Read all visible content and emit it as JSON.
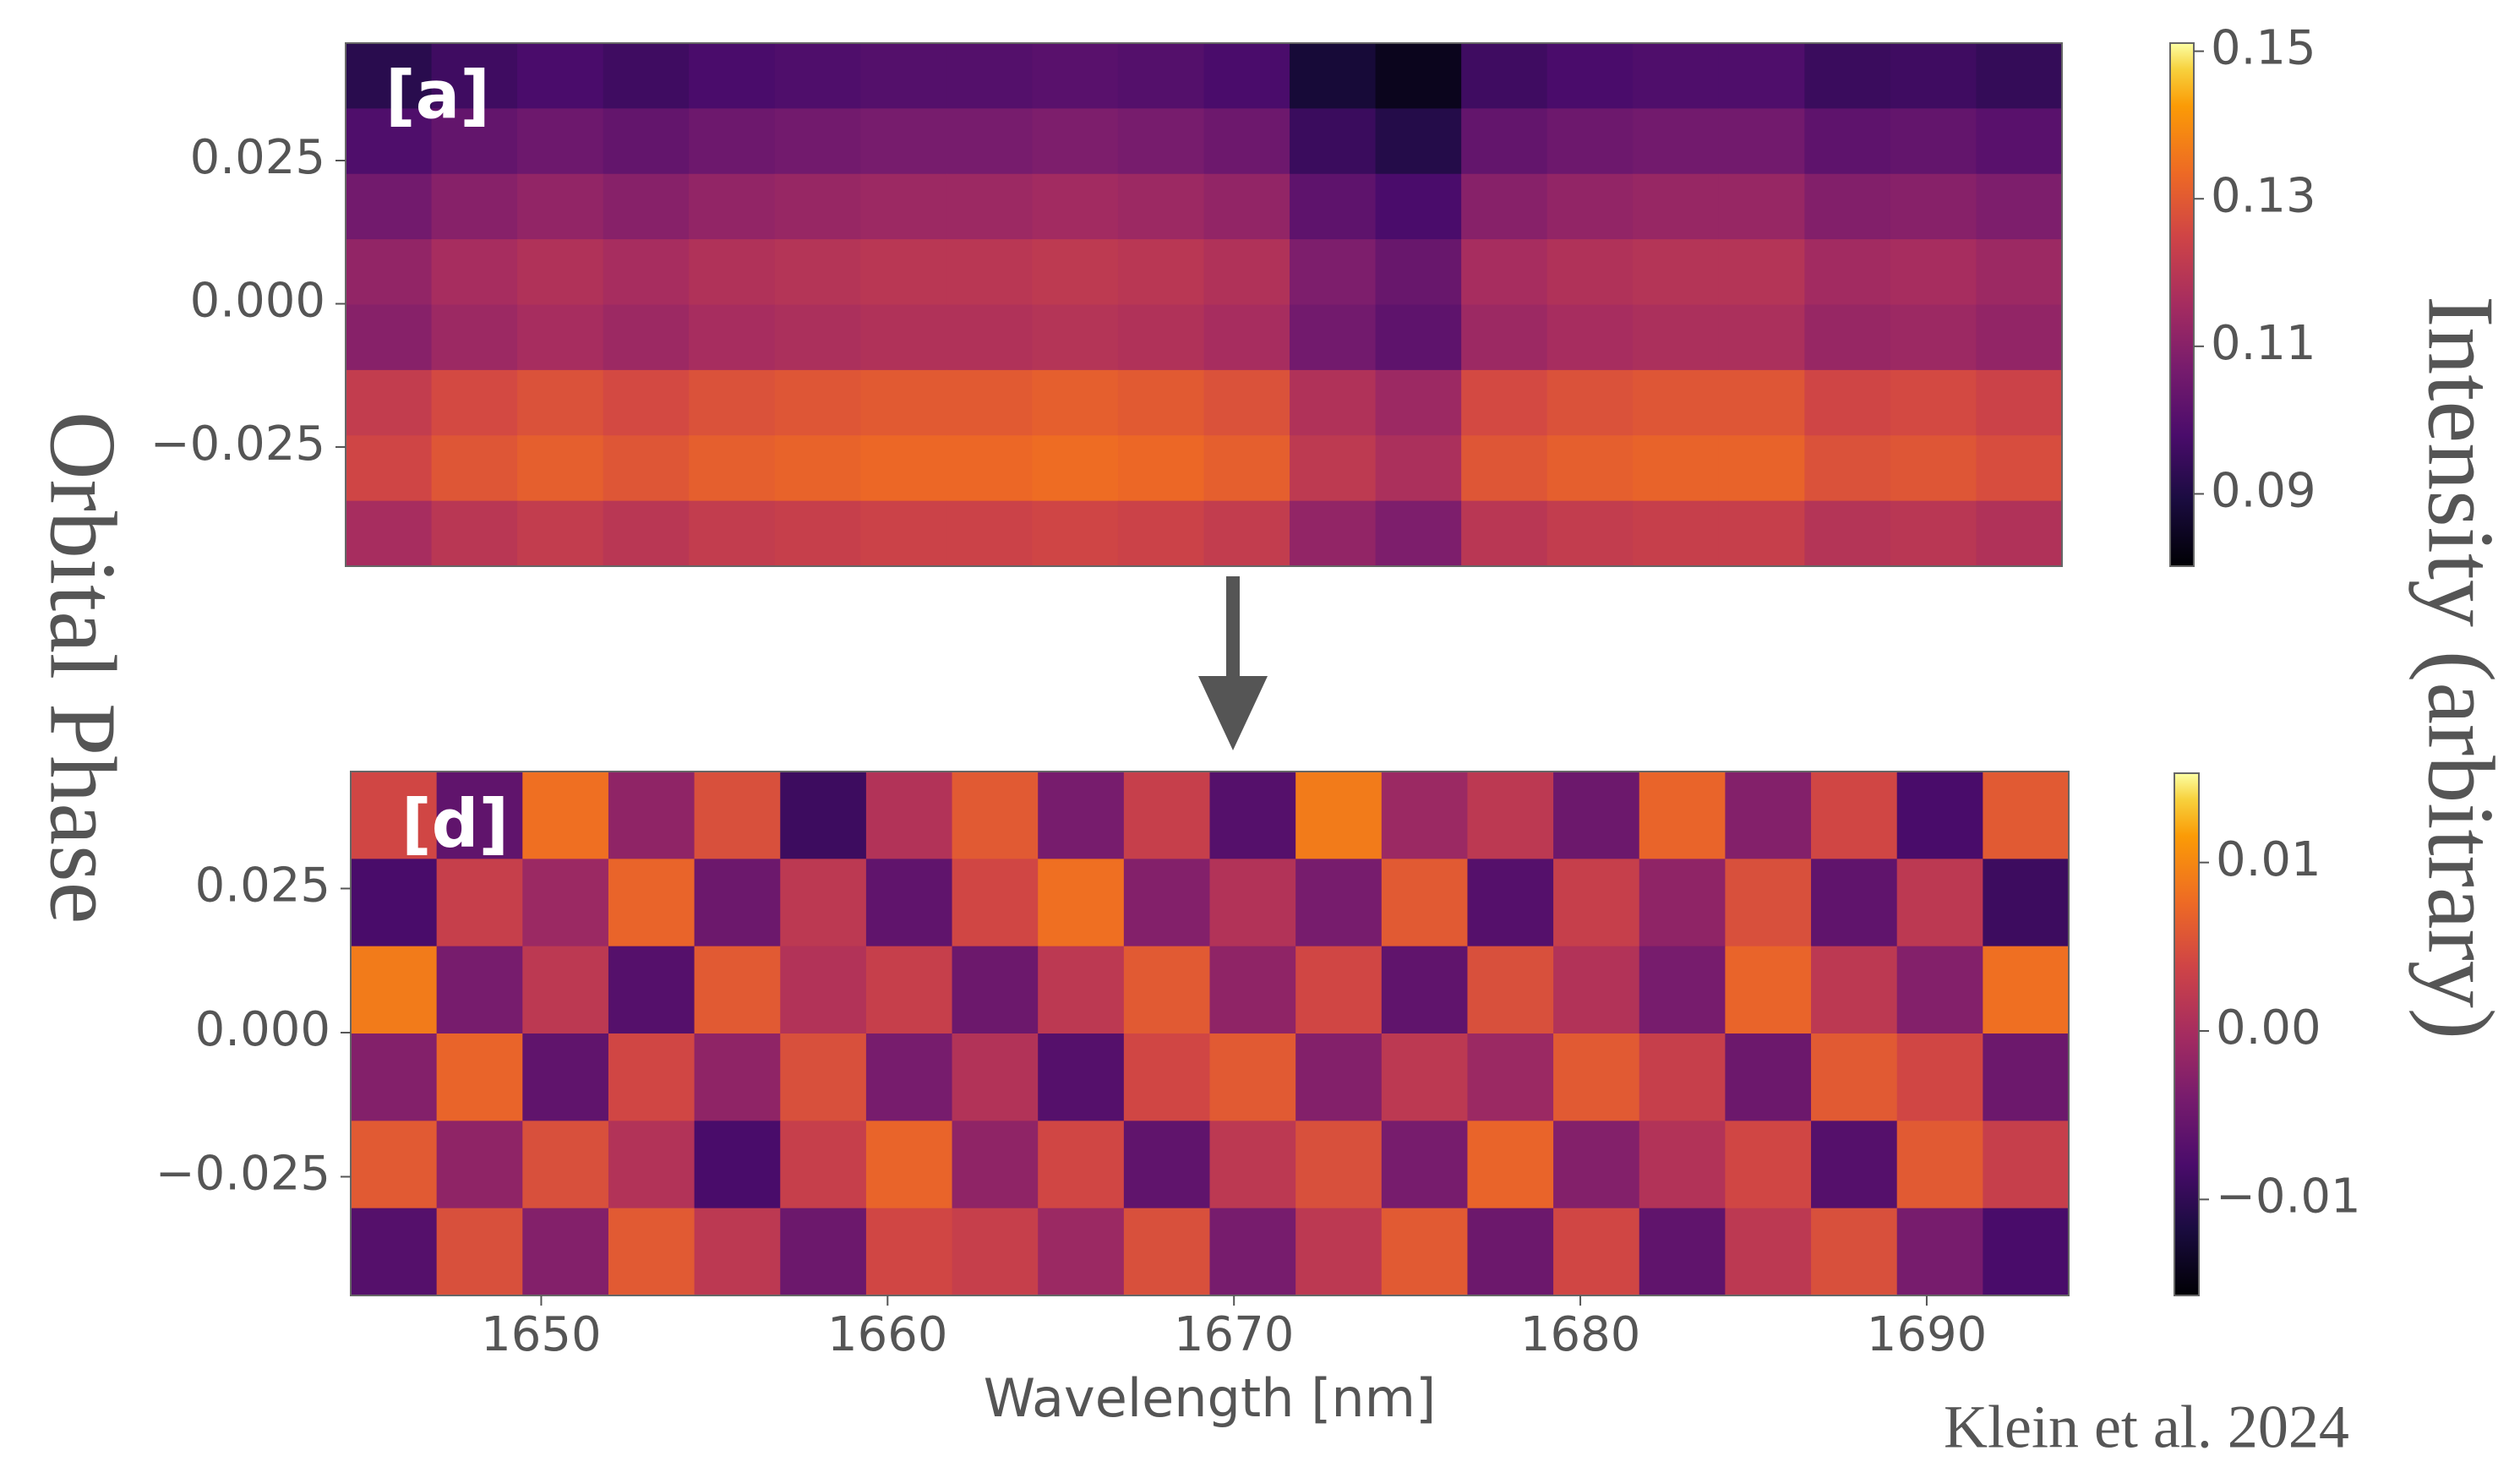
{
  "figure": {
    "y_label": "Orbital Phase",
    "colorbar_label": "Intensity (arbitrary)",
    "credit": "Klein et al. 2024"
  },
  "chart_data": [
    {
      "type": "heatmap",
      "panel_label": "[a]",
      "colormap": "inferno",
      "xlim": [
        1644.5,
        1694.1
      ],
      "ylim": [
        -0.0458,
        0.0455
      ],
      "yticks": [
        0.025,
        {
          "value": 0,
          "label": "0.000"
        },
        {
          "value": -0.025,
          "label": "−0.025"
        }
      ],
      "clim": [
        0.0802,
        0.1511
      ],
      "cticks": [
        0.15,
        0.13,
        0.11,
        0.09
      ],
      "values": [
        [
          0.092,
          0.096,
          0.098,
          0.096,
          0.098,
          0.099,
          0.1,
          0.1,
          0.101,
          0.1,
          0.098,
          0.088,
          0.084,
          0.096,
          0.098,
          0.099,
          0.099,
          0.095,
          0.096,
          0.094
        ],
        [
          0.099,
          0.103,
          0.105,
          0.103,
          0.105,
          0.106,
          0.107,
          0.107,
          0.108,
          0.107,
          0.105,
          0.095,
          0.091,
          0.103,
          0.105,
          0.106,
          0.106,
          0.102,
          0.103,
          0.101
        ],
        [
          0.106,
          0.11,
          0.112,
          0.11,
          0.112,
          0.113,
          0.114,
          0.114,
          0.115,
          0.114,
          0.112,
          0.102,
          0.098,
          0.11,
          0.112,
          0.113,
          0.113,
          0.109,
          0.11,
          0.108
        ],
        [
          0.112,
          0.116,
          0.118,
          0.116,
          0.118,
          0.119,
          0.12,
          0.12,
          0.121,
          0.12,
          0.118,
          0.108,
          0.104,
          0.116,
          0.118,
          0.119,
          0.119,
          0.115,
          0.116,
          0.114
        ],
        [
          0.11,
          0.114,
          0.116,
          0.114,
          0.116,
          0.117,
          0.118,
          0.118,
          0.119,
          0.118,
          0.116,
          0.106,
          0.102,
          0.114,
          0.116,
          0.117,
          0.117,
          0.113,
          0.114,
          0.112
        ],
        [
          0.122,
          0.126,
          0.128,
          0.126,
          0.128,
          0.129,
          0.13,
          0.13,
          0.131,
          0.13,
          0.128,
          0.118,
          0.114,
          0.126,
          0.128,
          0.129,
          0.129,
          0.125,
          0.126,
          0.124
        ],
        [
          0.125,
          0.129,
          0.131,
          0.129,
          0.131,
          0.132,
          0.133,
          0.133,
          0.134,
          0.133,
          0.131,
          0.121,
          0.117,
          0.129,
          0.131,
          0.132,
          0.132,
          0.128,
          0.129,
          0.127
        ],
        [
          0.116,
          0.12,
          0.122,
          0.12,
          0.122,
          0.123,
          0.124,
          0.124,
          0.125,
          0.124,
          0.122,
          0.112,
          0.108,
          0.12,
          0.122,
          0.123,
          0.123,
          0.119,
          0.12,
          0.118
        ]
      ]
    },
    {
      "type": "heatmap",
      "panel_label": "[d]",
      "colormap": "inferno",
      "xlim": [
        1644.5,
        1694.1
      ],
      "ylim": [
        -0.0456,
        0.0453
      ],
      "xticks": [
        1650,
        1660,
        1670,
        1680,
        1690
      ],
      "x_label": "Wavelength [nm]",
      "yticks": [
        0.025,
        {
          "value": 0,
          "label": "0.000"
        },
        {
          "value": -0.025,
          "label": "−0.025"
        }
      ],
      "clim": [
        -0.0157,
        0.0153
      ],
      "cticks": [
        0.01,
        {
          "value": 0,
          "label": "0.00"
        },
        {
          "value": -0.01,
          "label": "−0.01"
        }
      ],
      "values": [
        [
          0.004,
          -0.006,
          0.008,
          -0.002,
          0.005,
          -0.009,
          0.001,
          0.006,
          -0.004,
          0.003,
          -0.007,
          0.009,
          -0.001,
          0.002,
          -0.005,
          0.007,
          -0.003,
          0.004,
          -0.008,
          0.006
        ],
        [
          -0.008,
          0.003,
          -0.001,
          0.007,
          -0.005,
          0.002,
          -0.006,
          0.004,
          0.008,
          -0.003,
          0.001,
          -0.004,
          0.006,
          -0.007,
          0.003,
          -0.002,
          0.005,
          -0.006,
          0.002,
          -0.009
        ],
        [
          0.009,
          -0.004,
          0.002,
          -0.007,
          0.006,
          0.001,
          0.003,
          -0.005,
          0.002,
          0.006,
          -0.002,
          0.004,
          -0.006,
          0.005,
          0.001,
          -0.004,
          0.007,
          0.002,
          -0.003,
          0.008
        ],
        [
          -0.003,
          0.007,
          -0.006,
          0.004,
          -0.002,
          0.005,
          -0.004,
          0.001,
          -0.007,
          0.004,
          0.006,
          -0.003,
          0.002,
          -0.001,
          0.006,
          0.003,
          -0.005,
          0.006,
          0.004,
          -0.005
        ],
        [
          0.006,
          -0.002,
          0.005,
          0.001,
          -0.008,
          0.003,
          0.007,
          -0.002,
          0.004,
          -0.006,
          0.002,
          0.005,
          -0.004,
          0.007,
          -0.003,
          0.001,
          0.004,
          -0.007,
          0.006,
          0.003
        ],
        [
          -0.007,
          0.005,
          -0.003,
          0.006,
          0.002,
          -0.005,
          0.004,
          0.003,
          -0.001,
          0.005,
          -0.004,
          0.002,
          0.006,
          -0.005,
          0.004,
          -0.006,
          0.002,
          0.005,
          -0.004,
          -0.008
        ]
      ]
    }
  ]
}
